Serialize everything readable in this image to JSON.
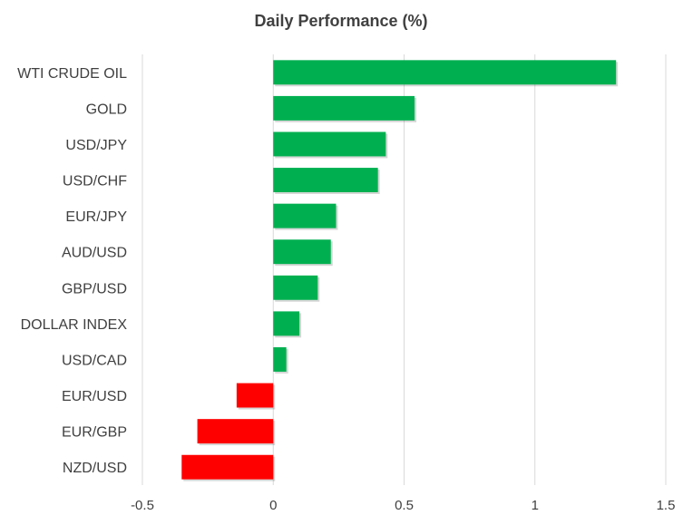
{
  "chart_data": {
    "type": "bar",
    "orientation": "horizontal",
    "title": "Daily Performance  (%)",
    "xlabel": "",
    "ylabel": "",
    "categories": [
      "WTI CRUDE OIL",
      "GOLD",
      "USD/JPY",
      "USD/CHF",
      "EUR/JPY",
      "AUD/USD",
      "GBP/USD",
      "DOLLAR INDEX",
      "USD/CAD",
      "EUR/USD",
      "EUR/GBP",
      "NZD/USD"
    ],
    "values": [
      1.31,
      0.54,
      0.43,
      0.4,
      0.24,
      0.22,
      0.17,
      0.1,
      0.05,
      -0.14,
      -0.29,
      -0.35
    ],
    "xlim": [
      -0.5,
      1.5
    ],
    "x_ticks": [
      "-0.5",
      "0",
      "0.5",
      "1",
      "1.5"
    ],
    "grid": true,
    "legend": "none",
    "colors": {
      "positive": "#00B050",
      "negative": "#FF0000",
      "grid": "#D9D9D9",
      "text": "#404040"
    }
  }
}
